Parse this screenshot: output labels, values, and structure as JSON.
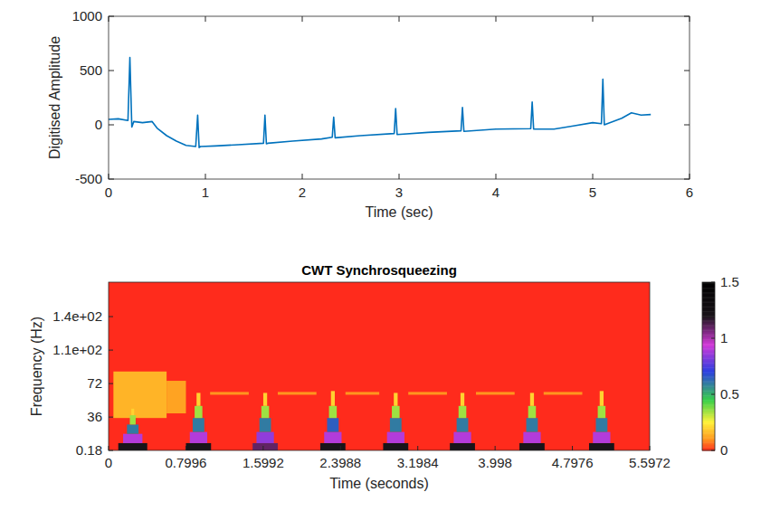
{
  "chart_data": [
    {
      "type": "line",
      "xlabel": "Time (sec)",
      "ylabel": "Digitised Amplitude",
      "xlim": [
        0,
        6
      ],
      "xticks": [
        0,
        1,
        2,
        3,
        4,
        5,
        6
      ],
      "ylim": [
        -500,
        1000
      ],
      "yticks": [
        -500,
        0,
        500,
        1000
      ],
      "grid": false,
      "color": "#0072bd",
      "x": [
        0,
        0.1,
        0.2,
        0.22,
        0.24,
        0.26,
        0.35,
        0.45,
        0.5,
        0.6,
        0.7,
        0.8,
        0.9,
        0.92,
        0.935,
        0.95,
        1.1,
        1.3,
        1.6,
        1.615,
        1.63,
        1.645,
        1.9,
        2.2,
        2.31,
        2.325,
        2.34,
        2.6,
        2.95,
        2.965,
        2.98,
        3.3,
        3.64,
        3.655,
        3.67,
        4.0,
        4.36,
        4.375,
        4.39,
        4.6,
        4.8,
        5.0,
        5.09,
        5.105,
        5.12,
        5.3,
        5.4,
        5.5,
        5.6
      ],
      "values": [
        50,
        55,
        40,
        620,
        -20,
        30,
        20,
        30,
        -30,
        -100,
        -150,
        -190,
        -200,
        90,
        -210,
        -200,
        -195,
        -185,
        -170,
        90,
        -175,
        -170,
        -150,
        -130,
        -115,
        70,
        -120,
        -100,
        -80,
        150,
        -90,
        -70,
        -55,
        160,
        -60,
        -40,
        -35,
        210,
        -40,
        -40,
        -10,
        20,
        10,
        420,
        0,
        60,
        110,
        90,
        95
      ]
    },
    {
      "type": "heatmap",
      "title": "CWT Synchrosqueezing",
      "xlabel": "Time (seconds)",
      "ylabel": "Frequency (Hz)",
      "xlim": [
        0,
        5.5972
      ],
      "xticks": [
        0,
        0.7996,
        1.5992,
        2.3988,
        3.1984,
        3.998,
        4.7976,
        5.5972
      ],
      "ylim": [
        0.18,
        181
      ],
      "yticks": [
        0.18,
        36,
        72,
        {
          "value": 108,
          "label": "1.1e+02"
        },
        {
          "value": 144,
          "label": "1.4e+02"
        }
      ],
      "grid": false,
      "colorbar_range": [
        0,
        1.5
      ],
      "colorbar_ticks": [
        0,
        0.5,
        1,
        1.5
      ],
      "cells": [
        {
          "x0": 0.05,
          "x1": 0.6,
          "y0": 35,
          "y1": 85,
          "value": 0.15
        },
        {
          "x0": 0.6,
          "x1": 0.8,
          "y0": 40,
          "y1": 75,
          "value": 0.12
        },
        {
          "x0": 1.05,
          "x1": 1.45,
          "y0": 60,
          "y1": 63,
          "value": 0.1
        },
        {
          "x0": 1.75,
          "x1": 2.15,
          "y0": 60,
          "y1": 63,
          "value": 0.1
        },
        {
          "x0": 2.45,
          "x1": 2.8,
          "y0": 60,
          "y1": 63,
          "value": 0.1
        },
        {
          "x0": 3.1,
          "x1": 3.5,
          "y0": 60,
          "y1": 63,
          "value": 0.1
        },
        {
          "x0": 3.8,
          "x1": 4.2,
          "y0": 60,
          "y1": 63,
          "value": 0.1
        },
        {
          "x0": 4.5,
          "x1": 4.9,
          "y0": 60,
          "y1": 63,
          "value": 0.1
        },
        {
          "x0": 0.1,
          "x1": 0.4,
          "y0": 0.18,
          "y1": 8,
          "value": 1.2
        },
        {
          "x0": 0.15,
          "x1": 0.35,
          "y0": 8,
          "y1": 18,
          "value": 0.9
        },
        {
          "x0": 0.19,
          "x1": 0.31,
          "y0": 18,
          "y1": 28,
          "value": 0.6
        },
        {
          "x0": 0.22,
          "x1": 0.28,
          "y0": 28,
          "y1": 38,
          "value": 0.35
        },
        {
          "x0": 0.235,
          "x1": 0.265,
          "y0": 38,
          "y1": 45,
          "value": 0.2
        },
        {
          "x0": 0.8,
          "x1": 1.06,
          "y0": 0.18,
          "y1": 8,
          "value": 1.2
        },
        {
          "x0": 0.84,
          "x1": 1.02,
          "y0": 8,
          "y1": 20,
          "value": 0.9
        },
        {
          "x0": 0.87,
          "x1": 0.99,
          "y0": 20,
          "y1": 35,
          "value": 0.6
        },
        {
          "x0": 0.89,
          "x1": 0.97,
          "y0": 35,
          "y1": 48,
          "value": 0.35
        },
        {
          "x0": 0.91,
          "x1": 0.95,
          "y0": 48,
          "y1": 62,
          "value": 0.2
        },
        {
          "x0": 1.49,
          "x1": 1.75,
          "y0": 0.18,
          "y1": 8,
          "value": 1.1
        },
        {
          "x0": 1.53,
          "x1": 1.71,
          "y0": 8,
          "y1": 20,
          "value": 0.85
        },
        {
          "x0": 1.56,
          "x1": 1.68,
          "y0": 20,
          "y1": 35,
          "value": 0.6
        },
        {
          "x0": 1.58,
          "x1": 1.66,
          "y0": 35,
          "y1": 48,
          "value": 0.35
        },
        {
          "x0": 1.6,
          "x1": 1.64,
          "y0": 48,
          "y1": 62,
          "value": 0.2
        },
        {
          "x0": 2.19,
          "x1": 2.45,
          "y0": 0.18,
          "y1": 8,
          "value": 1.2
        },
        {
          "x0": 2.23,
          "x1": 2.41,
          "y0": 8,
          "y1": 20,
          "value": 0.9
        },
        {
          "x0": 2.26,
          "x1": 2.38,
          "y0": 20,
          "y1": 35,
          "value": 0.65
        },
        {
          "x0": 2.28,
          "x1": 2.36,
          "y0": 35,
          "y1": 48,
          "value": 0.35
        },
        {
          "x0": 2.3,
          "x1": 2.34,
          "y0": 48,
          "y1": 64,
          "value": 0.2
        },
        {
          "x0": 2.84,
          "x1": 3.1,
          "y0": 0.18,
          "y1": 8,
          "value": 1.2
        },
        {
          "x0": 2.88,
          "x1": 3.06,
          "y0": 8,
          "y1": 20,
          "value": 0.9
        },
        {
          "x0": 2.91,
          "x1": 3.03,
          "y0": 20,
          "y1": 35,
          "value": 0.6
        },
        {
          "x0": 2.93,
          "x1": 3.01,
          "y0": 35,
          "y1": 48,
          "value": 0.35
        },
        {
          "x0": 2.95,
          "x1": 2.99,
          "y0": 48,
          "y1": 62,
          "value": 0.2
        },
        {
          "x0": 3.53,
          "x1": 3.79,
          "y0": 0.18,
          "y1": 8,
          "value": 1.2
        },
        {
          "x0": 3.57,
          "x1": 3.75,
          "y0": 8,
          "y1": 20,
          "value": 0.9
        },
        {
          "x0": 3.6,
          "x1": 3.72,
          "y0": 20,
          "y1": 35,
          "value": 0.6
        },
        {
          "x0": 3.62,
          "x1": 3.7,
          "y0": 35,
          "y1": 48,
          "value": 0.35
        },
        {
          "x0": 3.64,
          "x1": 3.68,
          "y0": 48,
          "y1": 62,
          "value": 0.2
        },
        {
          "x0": 4.25,
          "x1": 4.51,
          "y0": 0.18,
          "y1": 8,
          "value": 1.2
        },
        {
          "x0": 4.29,
          "x1": 4.47,
          "y0": 8,
          "y1": 20,
          "value": 0.9
        },
        {
          "x0": 4.32,
          "x1": 4.44,
          "y0": 20,
          "y1": 35,
          "value": 0.6
        },
        {
          "x0": 4.34,
          "x1": 4.42,
          "y0": 35,
          "y1": 48,
          "value": 0.35
        },
        {
          "x0": 4.36,
          "x1": 4.4,
          "y0": 48,
          "y1": 62,
          "value": 0.2
        },
        {
          "x0": 4.97,
          "x1": 5.23,
          "y0": 0.18,
          "y1": 8,
          "value": 1.2
        },
        {
          "x0": 5.01,
          "x1": 5.19,
          "y0": 8,
          "y1": 20,
          "value": 0.9
        },
        {
          "x0": 5.04,
          "x1": 5.16,
          "y0": 20,
          "y1": 35,
          "value": 0.6
        },
        {
          "x0": 5.06,
          "x1": 5.14,
          "y0": 35,
          "y1": 48,
          "value": 0.35
        },
        {
          "x0": 5.08,
          "x1": 5.12,
          "y0": 48,
          "y1": 64,
          "value": 0.2
        }
      ]
    }
  ]
}
